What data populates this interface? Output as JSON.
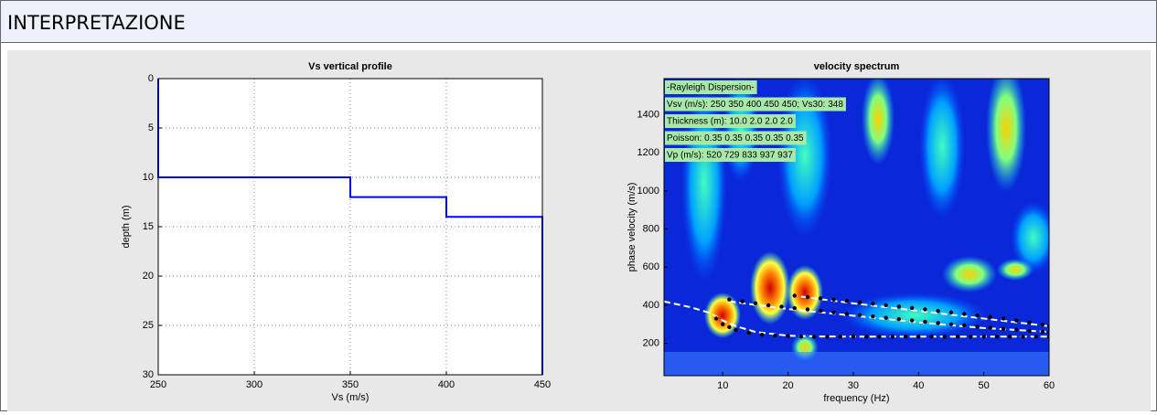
{
  "header": {
    "title": "INTERPRETAZIONE"
  },
  "chart_data": [
    {
      "type": "line",
      "title": "Vs vertical profile",
      "xlabel": "Vs (m/s)",
      "ylabel": "depth (m)",
      "xlim": [
        250,
        450
      ],
      "ylim": [
        0,
        30
      ],
      "y_reversed": true,
      "grid": true,
      "xticks": [
        250,
        300,
        350,
        400,
        450
      ],
      "yticks": [
        0,
        5,
        10,
        15,
        20,
        25,
        30
      ],
      "series": [
        {
          "color": "#0000ff",
          "style": "solid",
          "x": [
            250,
            250,
            350,
            350,
            400,
            400,
            450,
            450
          ],
          "values": [
            0,
            10,
            10,
            12,
            12,
            14,
            14,
            30
          ]
        }
      ]
    },
    {
      "type": "line",
      "title": "velocity spectrum",
      "xlabel": "frequency (Hz)",
      "ylabel": "phase velocity (m/s)",
      "xlim": [
        1,
        60
      ],
      "ylim": [
        30,
        1590
      ],
      "grid": false,
      "xticks": [
        10,
        20,
        30,
        40,
        50,
        60
      ],
      "yticks": [
        200,
        400,
        600,
        800,
        1000,
        1200,
        1400
      ],
      "annotations": [
        "-Rayleigh Dispersion-",
        "Vsv (m/s): 250  350  400  450  450; Vs30: 348",
        "Thickness (m): 10.0   2.0   2.0   2.0",
        "Poisson: 0.35  0.35  0.35  0.35  0.35",
        "Vp (m/s): 520  729  833  937  937"
      ],
      "series": [
        {
          "color": "#ffffff",
          "style": "dashed",
          "x": [
            1,
            5,
            8,
            10,
            12,
            15,
            20,
            25,
            30,
            40,
            50,
            60
          ],
          "values": [
            420,
            390,
            360,
            320,
            290,
            260,
            240,
            236,
            235,
            235,
            235,
            235
          ]
        },
        {
          "color": "#ffffff",
          "style": "dashed",
          "x": [
            11,
            20,
            30,
            40,
            50,
            60
          ],
          "values": [
            420,
            380,
            345,
            310,
            280,
            260
          ]
        },
        {
          "color": "#ffffff",
          "style": "dashed",
          "x": [
            22,
            30,
            40,
            50,
            60
          ],
          "values": [
            445,
            410,
            370,
            330,
            290
          ]
        },
        {
          "color": "#000000",
          "style": "dots",
          "x": [
            9,
            10,
            11,
            12,
            14,
            16,
            18,
            20,
            22,
            24,
            26,
            28,
            30,
            32,
            34,
            36,
            38,
            40,
            42,
            44,
            46,
            48,
            50,
            52,
            54,
            56,
            58,
            60
          ],
          "values": [
            330,
            300,
            285,
            270,
            255,
            245,
            240,
            238,
            236,
            235,
            235,
            235,
            235,
            235,
            235,
            235,
            235,
            235,
            235,
            235,
            235,
            235,
            235,
            235,
            235,
            235,
            235,
            235
          ]
        },
        {
          "color": "#000000",
          "style": "dots",
          "x": [
            11,
            13,
            15,
            17,
            19,
            21,
            23,
            25,
            27,
            29,
            31,
            33,
            35,
            37,
            39,
            41,
            43,
            45,
            47,
            49,
            51,
            53,
            55,
            57,
            59,
            60
          ],
          "values": [
            430,
            420,
            410,
            400,
            392,
            385,
            378,
            370,
            362,
            355,
            348,
            341,
            334,
            327,
            320,
            313,
            307,
            300,
            294,
            288,
            282,
            276,
            270,
            265,
            260,
            258
          ]
        },
        {
          "color": "#000000",
          "style": "dots",
          "x": [
            21,
            23,
            25,
            27,
            29,
            31,
            33,
            35,
            37,
            39,
            41,
            43,
            45,
            47,
            49,
            51,
            53,
            55,
            57,
            59,
            60
          ],
          "values": [
            450,
            443,
            436,
            429,
            422,
            415,
            408,
            400,
            393,
            386,
            378,
            370,
            362,
            354,
            346,
            338,
            330,
            320,
            310,
            298,
            292
          ]
        }
      ]
    }
  ]
}
